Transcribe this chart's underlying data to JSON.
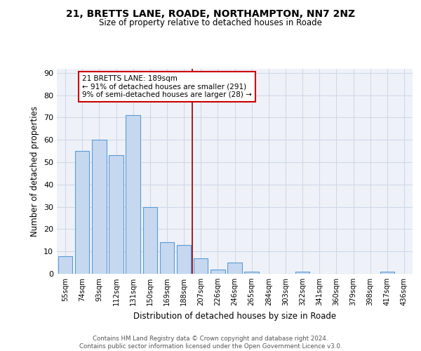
{
  "title1": "21, BRETTS LANE, ROADE, NORTHAMPTON, NN7 2NZ",
  "title2": "Size of property relative to detached houses in Roade",
  "xlabel": "Distribution of detached houses by size in Roade",
  "ylabel": "Number of detached properties",
  "bar_labels": [
    "55sqm",
    "74sqm",
    "93sqm",
    "112sqm",
    "131sqm",
    "150sqm",
    "169sqm",
    "188sqm",
    "207sqm",
    "226sqm",
    "246sqm",
    "265sqm",
    "284sqm",
    "303sqm",
    "322sqm",
    "341sqm",
    "360sqm",
    "379sqm",
    "398sqm",
    "417sqm",
    "436sqm"
  ],
  "bar_heights": [
    8,
    55,
    60,
    53,
    71,
    30,
    14,
    13,
    7,
    2,
    5,
    1,
    0,
    0,
    1,
    0,
    0,
    0,
    0,
    1,
    0
  ],
  "bar_color": "#c5d8f0",
  "bar_edge_color": "#5b9bd5",
  "vline_color": "#8b0000",
  "annotation_text": "21 BRETTS LANE: 189sqm\n← 91% of detached houses are smaller (291)\n9% of semi-detached houses are larger (28) →",
  "annotation_box_color": "#ffffff",
  "annotation_box_edge": "#cc0000",
  "ylim": [
    0,
    92
  ],
  "yticks": [
    0,
    10,
    20,
    30,
    40,
    50,
    60,
    70,
    80,
    90
  ],
  "grid_color": "#d0d8e8",
  "bg_color": "#eef2f8",
  "footer": "Contains HM Land Registry data © Crown copyright and database right 2024.\nContains public sector information licensed under the Open Government Licence v3.0."
}
